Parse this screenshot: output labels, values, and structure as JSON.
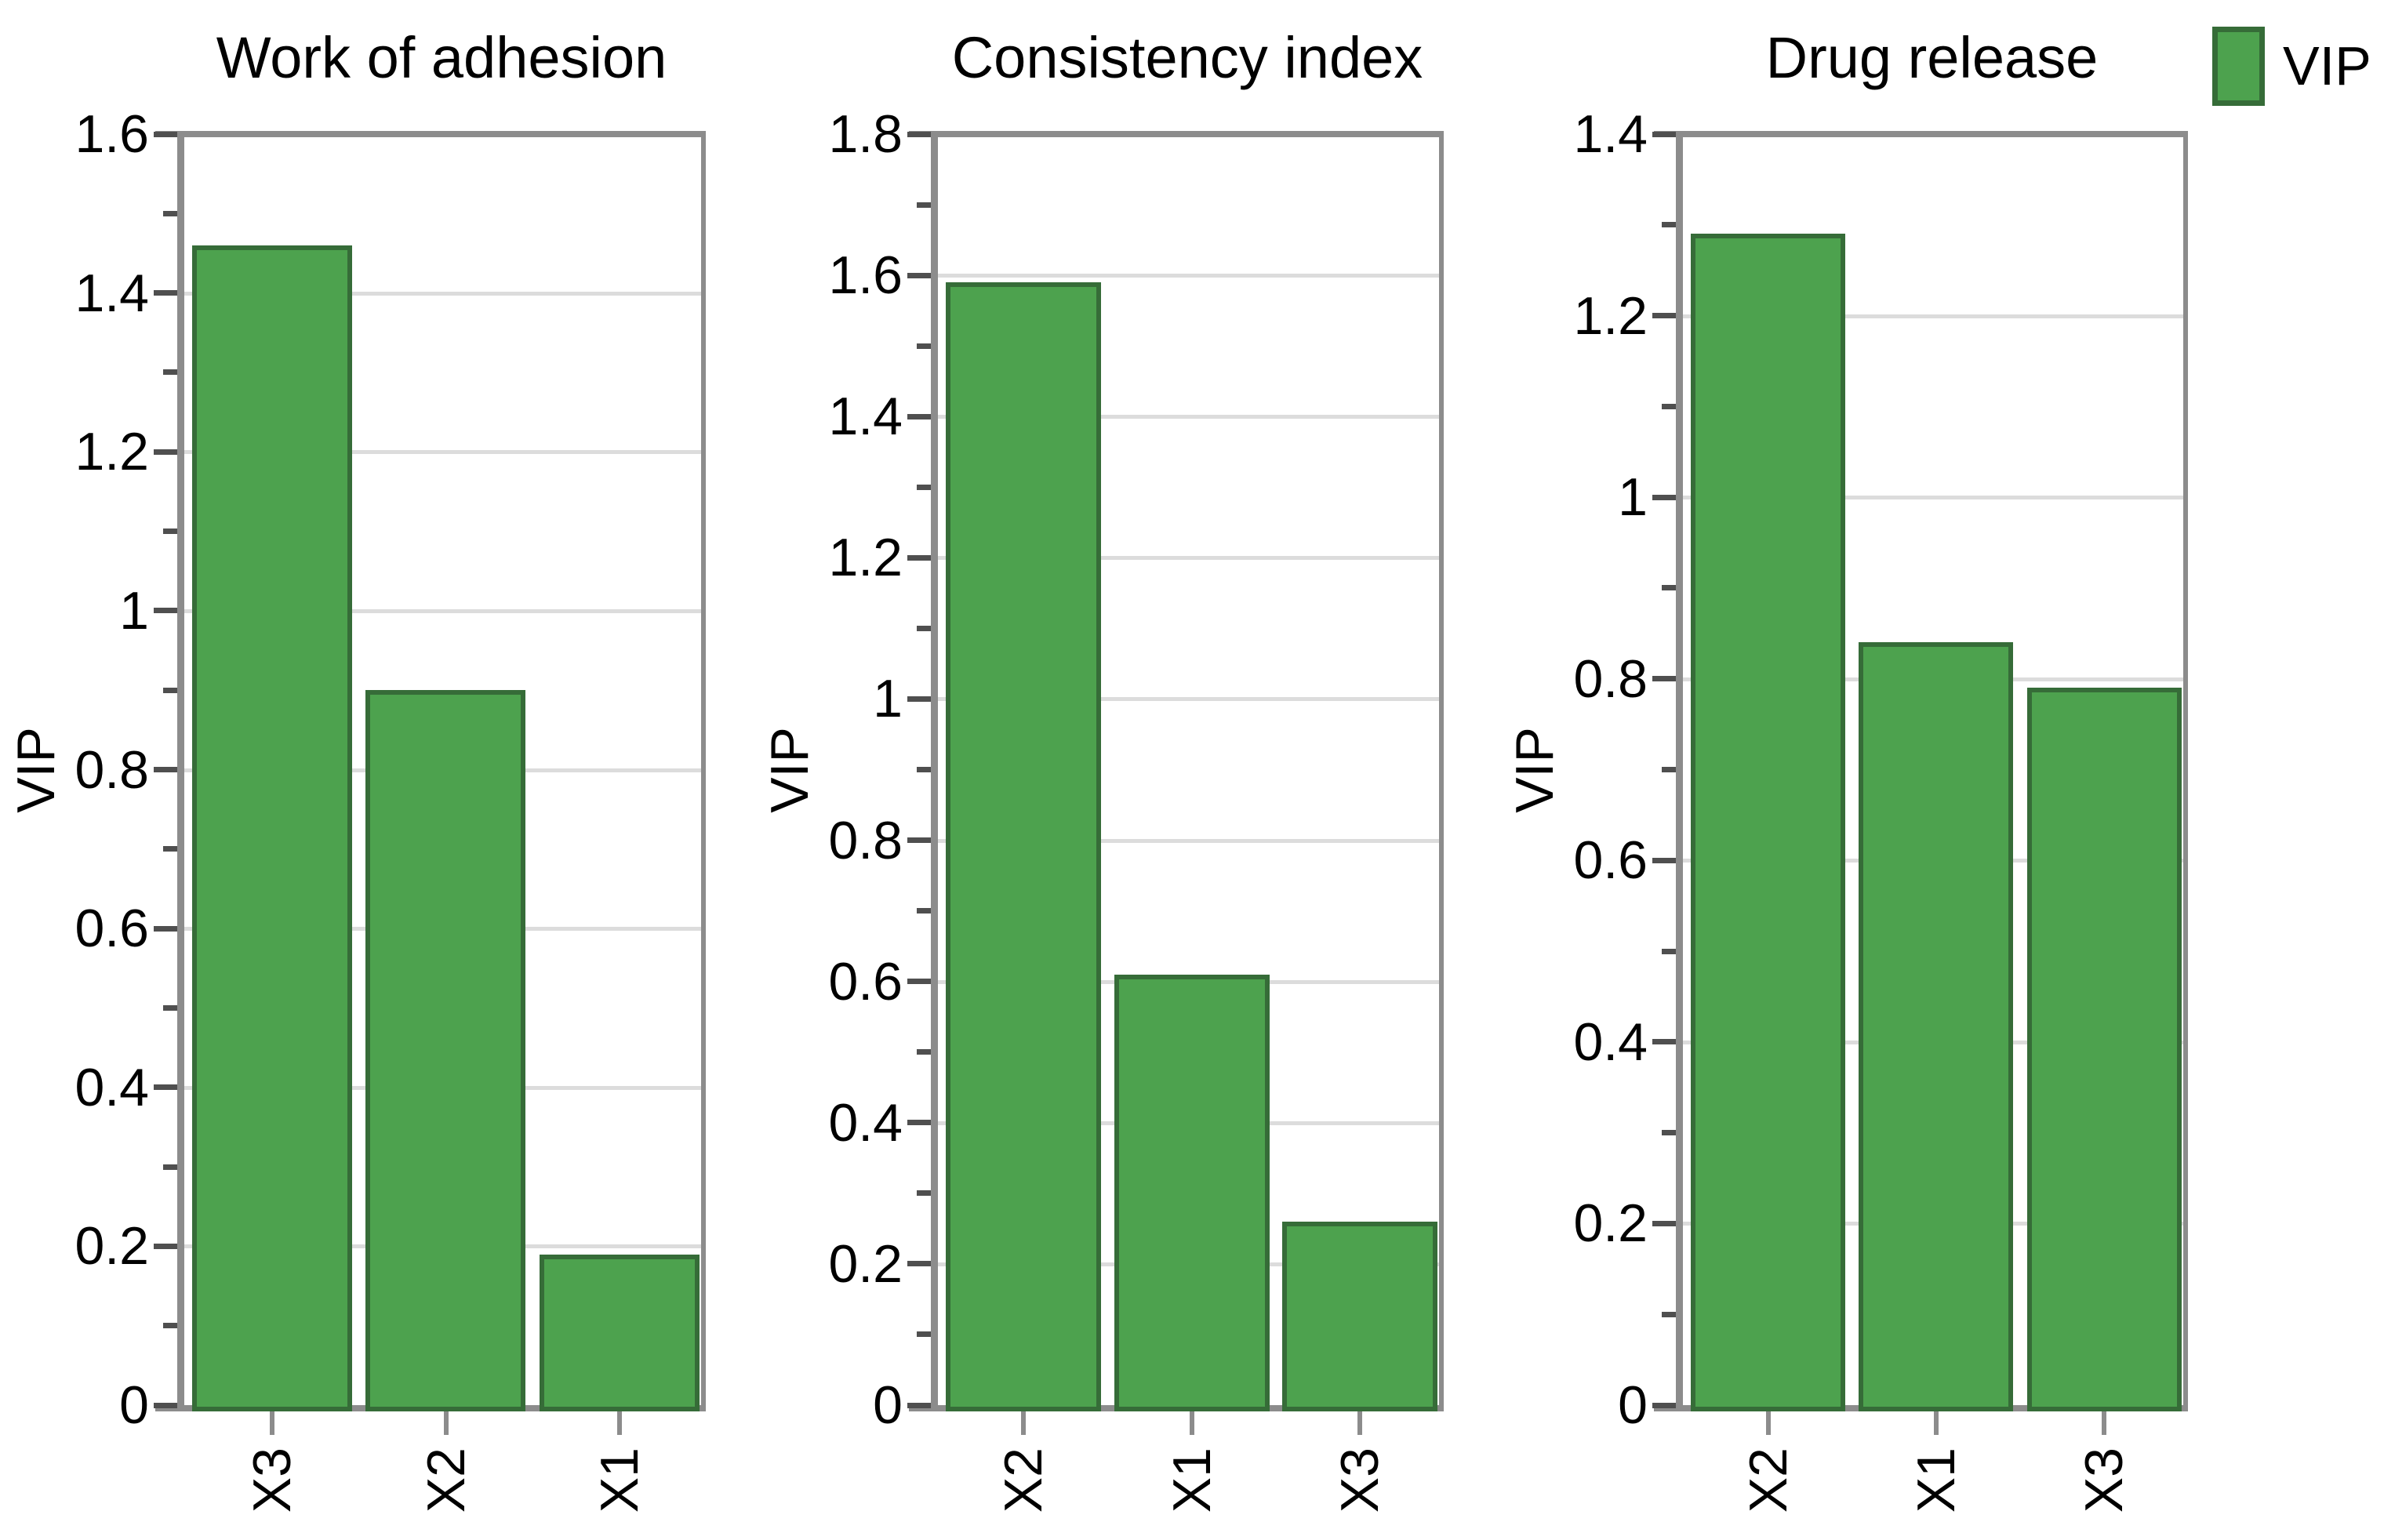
{
  "legend": {
    "label": "VIP",
    "swatch_fill": "#4DA24E",
    "swatch_border": "#366C38",
    "position": "top-right"
  },
  "colors": {
    "bar_fill": "#4DA24E",
    "bar_border": "#366C38",
    "axis": "#8C8C8C",
    "tick": "#4F4F4F",
    "gridline": "#DCDCDC",
    "text": "#000000",
    "background": "#FFFFFF"
  },
  "chart_data": [
    {
      "type": "bar",
      "title": "Work of adhesion",
      "xlabel": "",
      "ylabel": "VIP",
      "categories": [
        "X3",
        "X2",
        "X1"
      ],
      "values": [
        1.46,
        0.9,
        0.19
      ],
      "ylim": [
        0,
        1.6
      ],
      "y_tick_step": 0.2,
      "y_minor_tick_step": 0.1,
      "y_ticks": [
        "0",
        "0.2",
        "0.4",
        "0.6",
        "0.8",
        "1",
        "1.2",
        "1.4",
        "1.6"
      ],
      "grid": "horizontal-at-major-ticks",
      "legend_entry": "VIP"
    },
    {
      "type": "bar",
      "title": "Consistency index",
      "xlabel": "",
      "ylabel": "VIP",
      "categories": [
        "X2",
        "X1",
        "X3"
      ],
      "values": [
        1.59,
        0.61,
        0.26
      ],
      "ylim": [
        0,
        1.8
      ],
      "y_tick_step": 0.2,
      "y_minor_tick_step": 0.1,
      "y_ticks": [
        "0",
        "0.2",
        "0.4",
        "0.6",
        "0.8",
        "1",
        "1.2",
        "1.4",
        "1.6",
        "1.8"
      ],
      "grid": "horizontal-at-major-ticks",
      "legend_entry": "VIP"
    },
    {
      "type": "bar",
      "title": "Drug release",
      "xlabel": "",
      "ylabel": "VIP",
      "categories": [
        "X2",
        "X1",
        "X3"
      ],
      "values": [
        1.29,
        0.84,
        0.79
      ],
      "ylim": [
        0,
        1.4
      ],
      "y_tick_step": 0.2,
      "y_minor_tick_step": 0.1,
      "y_ticks": [
        "0",
        "0.2",
        "0.4",
        "0.6",
        "0.8",
        "1",
        "1.2",
        "1.4"
      ],
      "grid": "horizontal-at-major-ticks",
      "legend_entry": "VIP"
    }
  ]
}
